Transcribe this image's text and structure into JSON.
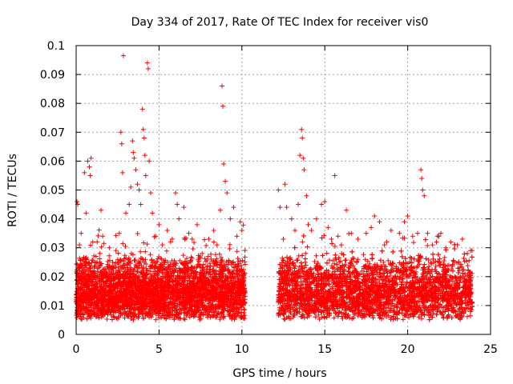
{
  "chart_data": {
    "type": "scatter",
    "title": "Day 334 of 2017, Rate Of TEC Index for receiver vis0",
    "xlabel": "GPS time / hours",
    "ylabel": "ROTI / TECUs",
    "xlim": [
      0,
      25
    ],
    "ylim": [
      0,
      0.1
    ],
    "x_ticks": [
      0,
      5,
      10,
      15,
      20,
      25
    ],
    "y_ticks": [
      0,
      0.01,
      0.02,
      0.03,
      0.04,
      0.05,
      0.06,
      0.07,
      0.08,
      0.09,
      0.1
    ],
    "x_tick_labels": [
      "0",
      "5",
      "10",
      "15",
      "20",
      "25"
    ],
    "y_tick_labels": [
      "0",
      "0.01",
      "0.02",
      "0.03",
      "0.04",
      "0.05",
      "0.06",
      "0.07",
      "0.08",
      "0.09",
      "0.1"
    ],
    "grid": true,
    "marker": "+",
    "color": "#ff0000",
    "data_gap_hours": [
      10.2,
      12.2
    ],
    "series": [
      {
        "name": "ROTI",
        "points": [
          [
            0.05,
            0.046
          ],
          [
            0.1,
            0.045
          ],
          [
            0.2,
            0.031
          ],
          [
            0.3,
            0.035
          ],
          [
            0.4,
            0.026
          ],
          [
            0.5,
            0.056
          ],
          [
            0.6,
            0.042
          ],
          [
            0.7,
            0.06
          ],
          [
            0.8,
            0.058
          ],
          [
            0.85,
            0.055
          ],
          [
            0.9,
            0.061
          ],
          [
            1.0,
            0.032
          ],
          [
            1.2,
            0.027
          ],
          [
            1.5,
            0.043
          ],
          [
            1.6,
            0.034
          ],
          [
            1.8,
            0.021
          ],
          [
            2.0,
            0.03
          ],
          [
            2.2,
            0.025
          ],
          [
            2.4,
            0.029
          ],
          [
            2.6,
            0.035
          ],
          [
            2.7,
            0.07
          ],
          [
            2.75,
            0.066
          ],
          [
            2.8,
            0.056
          ],
          [
            2.85,
            0.0965
          ],
          [
            3.0,
            0.042
          ],
          [
            3.2,
            0.045
          ],
          [
            3.3,
            0.051
          ],
          [
            3.4,
            0.067
          ],
          [
            3.45,
            0.063
          ],
          [
            3.5,
            0.061
          ],
          [
            3.6,
            0.057
          ],
          [
            3.7,
            0.052
          ],
          [
            3.8,
            0.05
          ],
          [
            3.9,
            0.045
          ],
          [
            4.0,
            0.078
          ],
          [
            4.05,
            0.071
          ],
          [
            4.1,
            0.068
          ],
          [
            4.15,
            0.062
          ],
          [
            4.2,
            0.055
          ],
          [
            4.3,
            0.094
          ],
          [
            4.35,
            0.092
          ],
          [
            4.4,
            0.06
          ],
          [
            4.5,
            0.049
          ],
          [
            4.6,
            0.042
          ],
          [
            4.8,
            0.034
          ],
          [
            5.0,
            0.038
          ],
          [
            5.2,
            0.031
          ],
          [
            5.5,
            0.036
          ],
          [
            5.8,
            0.033
          ],
          [
            6.0,
            0.049
          ],
          [
            6.1,
            0.045
          ],
          [
            6.2,
            0.04
          ],
          [
            6.5,
            0.044
          ],
          [
            6.8,
            0.035
          ],
          [
            7.0,
            0.033
          ],
          [
            7.3,
            0.038
          ],
          [
            7.6,
            0.028
          ],
          [
            8.0,
            0.033
          ],
          [
            8.3,
            0.036
          ],
          [
            8.5,
            0.031
          ],
          [
            8.7,
            0.043
          ],
          [
            8.8,
            0.086
          ],
          [
            8.85,
            0.079
          ],
          [
            8.9,
            0.059
          ],
          [
            9.0,
            0.053
          ],
          [
            9.1,
            0.049
          ],
          [
            9.3,
            0.04
          ],
          [
            9.5,
            0.044
          ],
          [
            9.7,
            0.034
          ],
          [
            9.9,
            0.039
          ],
          [
            10.0,
            0.036
          ],
          [
            12.2,
            0.05
          ],
          [
            12.3,
            0.044
          ],
          [
            12.5,
            0.033
          ],
          [
            12.6,
            0.052
          ],
          [
            12.7,
            0.044
          ],
          [
            13.0,
            0.04
          ],
          [
            13.2,
            0.036
          ],
          [
            13.4,
            0.045
          ],
          [
            13.5,
            0.062
          ],
          [
            13.6,
            0.071
          ],
          [
            13.65,
            0.068
          ],
          [
            13.7,
            0.061
          ],
          [
            13.75,
            0.057
          ],
          [
            13.9,
            0.048
          ],
          [
            14.0,
            0.038
          ],
          [
            14.2,
            0.036
          ],
          [
            14.5,
            0.04
          ],
          [
            14.8,
            0.045
          ],
          [
            15.0,
            0.046
          ],
          [
            15.2,
            0.037
          ],
          [
            15.4,
            0.033
          ],
          [
            15.6,
            0.055
          ],
          [
            15.8,
            0.034
          ],
          [
            16.0,
            0.031
          ],
          [
            16.3,
            0.043
          ],
          [
            16.6,
            0.035
          ],
          [
            17.0,
            0.033
          ],
          [
            17.5,
            0.035
          ],
          [
            17.8,
            0.037
          ],
          [
            18.0,
            0.041
          ],
          [
            18.3,
            0.039
          ],
          [
            18.6,
            0.031
          ],
          [
            19.0,
            0.036
          ],
          [
            19.5,
            0.035
          ],
          [
            19.8,
            0.039
          ],
          [
            20.0,
            0.041
          ],
          [
            20.3,
            0.034
          ],
          [
            20.6,
            0.035
          ],
          [
            20.8,
            0.057
          ],
          [
            20.85,
            0.054
          ],
          [
            20.9,
            0.05
          ],
          [
            21.0,
            0.048
          ],
          [
            21.2,
            0.035
          ],
          [
            21.5,
            0.031
          ],
          [
            21.8,
            0.034
          ],
          [
            22.0,
            0.035
          ],
          [
            22.3,
            0.03
          ],
          [
            22.6,
            0.032
          ],
          [
            23.0,
            0.031
          ],
          [
            23.3,
            0.033
          ],
          [
            23.6,
            0.028
          ],
          [
            23.8,
            0.029
          ]
        ]
      }
    ],
    "dense_band": {
      "description": "dense scatter of ROTI values between ~0.004 and ~0.025 TECUs",
      "segments": [
        [
          0.0,
          10.2
        ],
        [
          12.2,
          23.9
        ]
      ],
      "typical_range": [
        0.005,
        0.025
      ]
    }
  }
}
